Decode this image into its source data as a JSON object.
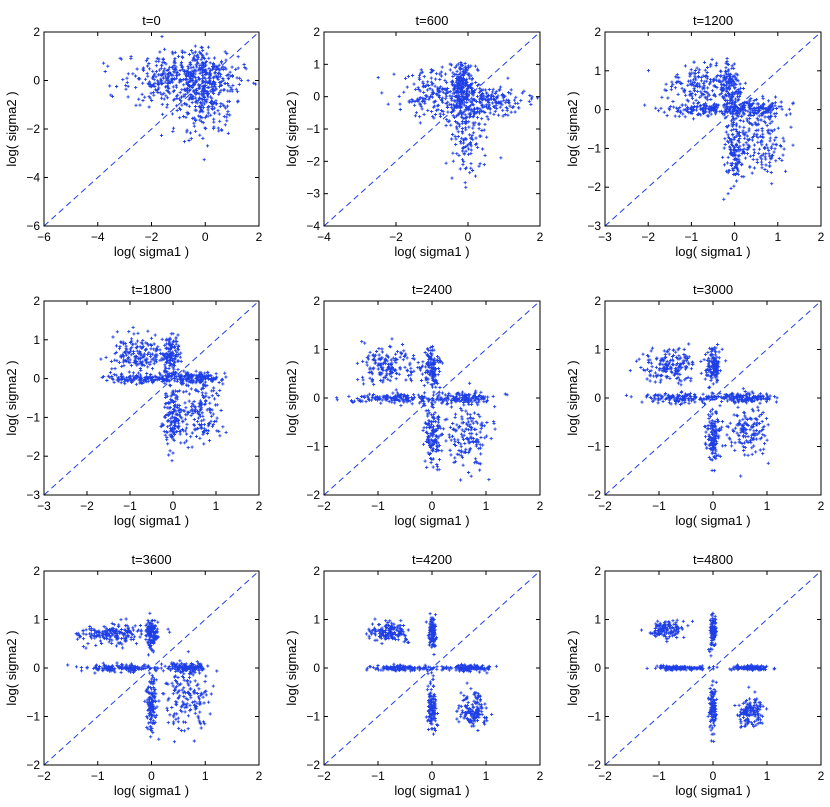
{
  "figure": {
    "marker_color": "#1f3fe6",
    "diagonal_color": "#1f3fe6",
    "marker": "plus",
    "diagonal_style": "dashed"
  },
  "chart_data": [
    {
      "type": "scatter",
      "title": "t=0",
      "xlabel": "log( sigma1 )",
      "ylabel": "log( sigma2 )",
      "xlim": [
        -6,
        2
      ],
      "ylim": [
        -6,
        2
      ],
      "xticks": [
        -6,
        -4,
        -2,
        0,
        2
      ],
      "yticks": [
        -6,
        -4,
        -2,
        0,
        2
      ],
      "xticklabels": [
        "−6",
        "−4",
        "−2",
        "0",
        "2"
      ],
      "yticklabels": [
        "−6",
        "−4",
        "−2",
        "0",
        "2"
      ],
      "clusters": [
        {
          "cx": -1.0,
          "cy": 0.0,
          "sx": 1.1,
          "sy": 0.6,
          "n": 320
        },
        {
          "cx": 0.0,
          "cy": -0.6,
          "sx": 0.5,
          "sy": 0.9,
          "n": 240
        },
        {
          "cx": -0.4,
          "cy": 0.3,
          "sx": 0.9,
          "sy": 0.4,
          "n": 140
        }
      ]
    },
    {
      "type": "scatter",
      "title": "t=600",
      "xlabel": "log( sigma1 )",
      "ylabel": "log( sigma2 )",
      "xlim": [
        -4,
        2
      ],
      "ylim": [
        -4,
        2
      ],
      "xticks": [
        -4,
        -2,
        0,
        2
      ],
      "yticks": [
        -4,
        -3,
        -2,
        -1,
        0,
        1,
        2
      ],
      "xticklabels": [
        "−4",
        "−2",
        "0",
        "2"
      ],
      "yticklabels": [
        "−4",
        "−3",
        "−2",
        "−1",
        "0",
        "1",
        "2"
      ],
      "clusters": [
        {
          "cx": -0.8,
          "cy": 0.1,
          "sx": 0.6,
          "sy": 0.35,
          "n": 200
        },
        {
          "cx": -0.15,
          "cy": 0.3,
          "sx": 0.15,
          "sy": 0.45,
          "n": 200
        },
        {
          "cx": 0.0,
          "cy": -1.0,
          "sx": 0.25,
          "sy": 0.7,
          "n": 180
        },
        {
          "cx": 0.6,
          "cy": -0.15,
          "sx": 0.45,
          "sy": 0.2,
          "n": 160
        }
      ]
    },
    {
      "type": "scatter",
      "title": "t=1200",
      "xlabel": "log( sigma1 )",
      "ylabel": "log( sigma2 )",
      "xlim": [
        -3,
        2
      ],
      "ylim": [
        -3,
        2
      ],
      "xticks": [
        -3,
        -2,
        -1,
        0,
        1,
        2
      ],
      "yticks": [
        -3,
        -2,
        -1,
        0,
        1,
        2
      ],
      "xticklabels": [
        "−3",
        "−2",
        "−1",
        "0",
        "1",
        "2"
      ],
      "yticklabels": [
        "−3",
        "−2",
        "−1",
        "0",
        "1",
        "2"
      ],
      "clusters": [
        {
          "cx": -0.8,
          "cy": 0.6,
          "sx": 0.35,
          "sy": 0.3,
          "n": 170
        },
        {
          "cx": -0.1,
          "cy": 0.6,
          "sx": 0.12,
          "sy": 0.35,
          "n": 140
        },
        {
          "cx": -0.6,
          "cy": 0.0,
          "sx": 0.55,
          "sy": 0.08,
          "n": 150
        },
        {
          "cx": 0.0,
          "cy": -1.0,
          "sx": 0.12,
          "sy": 0.5,
          "n": 150
        },
        {
          "cx": 0.6,
          "cy": -0.8,
          "sx": 0.3,
          "sy": 0.45,
          "n": 160
        },
        {
          "cx": 0.5,
          "cy": 0.0,
          "sx": 0.35,
          "sy": 0.12,
          "n": 140
        }
      ]
    },
    {
      "type": "scatter",
      "title": "t=1800",
      "xlabel": "log( sigma1 )",
      "ylabel": "log( sigma2 )",
      "xlim": [
        -3,
        2
      ],
      "ylim": [
        -3,
        2
      ],
      "xticks": [
        -3,
        -2,
        -1,
        0,
        1,
        2
      ],
      "yticks": [
        -3,
        -2,
        -1,
        0,
        1,
        2
      ],
      "xticklabels": [
        "−3",
        "−2",
        "−1",
        "0",
        "1",
        "2"
      ],
      "yticklabels": [
        "−3",
        "−2",
        "−1",
        "0",
        "1",
        "2"
      ],
      "clusters": [
        {
          "cx": -0.8,
          "cy": 0.65,
          "sx": 0.3,
          "sy": 0.25,
          "n": 170
        },
        {
          "cx": -0.05,
          "cy": 0.6,
          "sx": 0.1,
          "sy": 0.3,
          "n": 140
        },
        {
          "cx": -0.6,
          "cy": 0.0,
          "sx": 0.5,
          "sy": 0.06,
          "n": 150
        },
        {
          "cx": 0.0,
          "cy": -1.0,
          "sx": 0.1,
          "sy": 0.4,
          "n": 150
        },
        {
          "cx": 0.65,
          "cy": -0.85,
          "sx": 0.25,
          "sy": 0.4,
          "n": 160
        },
        {
          "cx": 0.55,
          "cy": 0.0,
          "sx": 0.3,
          "sy": 0.08,
          "n": 140
        }
      ]
    },
    {
      "type": "scatter",
      "title": "t=2400",
      "xlabel": "log( sigma1 )",
      "ylabel": "log( sigma2 )",
      "xlim": [
        -2,
        2
      ],
      "ylim": [
        -2,
        2
      ],
      "xticks": [
        -2,
        -1,
        0,
        1,
        2
      ],
      "yticks": [
        -2,
        -1,
        0,
        1,
        2
      ],
      "xticklabels": [
        "−2",
        "−1",
        "0",
        "1",
        "2"
      ],
      "yticklabels": [
        "−2",
        "−1",
        "0",
        "1",
        "2"
      ],
      "clusters": [
        {
          "cx": -0.8,
          "cy": 0.65,
          "sx": 0.28,
          "sy": 0.2,
          "n": 170
        },
        {
          "cx": 0.0,
          "cy": 0.65,
          "sx": 0.08,
          "sy": 0.22,
          "n": 130
        },
        {
          "cx": -0.6,
          "cy": 0.0,
          "sx": 0.45,
          "sy": 0.05,
          "n": 150
        },
        {
          "cx": 0.0,
          "cy": -0.8,
          "sx": 0.08,
          "sy": 0.35,
          "n": 140
        },
        {
          "cx": 0.65,
          "cy": -0.75,
          "sx": 0.22,
          "sy": 0.35,
          "n": 160
        },
        {
          "cx": 0.6,
          "cy": 0.0,
          "sx": 0.25,
          "sy": 0.06,
          "n": 130
        }
      ]
    },
    {
      "type": "scatter",
      "title": "t=3000",
      "xlabel": "log( sigma1 )",
      "ylabel": "log( sigma2 )",
      "xlim": [
        -2,
        2
      ],
      "ylim": [
        -2,
        2
      ],
      "xticks": [
        -2,
        -1,
        0,
        1,
        2
      ],
      "yticks": [
        -2,
        -1,
        0,
        1,
        2
      ],
      "xticklabels": [
        "−2",
        "−1",
        "0",
        "1",
        "2"
      ],
      "yticklabels": [
        "−2",
        "−1",
        "0",
        "1",
        "2"
      ],
      "clusters": [
        {
          "cx": -0.8,
          "cy": 0.65,
          "sx": 0.25,
          "sy": 0.18,
          "n": 170
        },
        {
          "cx": 0.0,
          "cy": 0.65,
          "sx": 0.07,
          "sy": 0.2,
          "n": 130
        },
        {
          "cx": -0.55,
          "cy": 0.0,
          "sx": 0.4,
          "sy": 0.05,
          "n": 150
        },
        {
          "cx": 0.0,
          "cy": -0.75,
          "sx": 0.07,
          "sy": 0.3,
          "n": 130
        },
        {
          "cx": 0.65,
          "cy": -0.7,
          "sx": 0.2,
          "sy": 0.3,
          "n": 150
        },
        {
          "cx": 0.65,
          "cy": 0.0,
          "sx": 0.22,
          "sy": 0.05,
          "n": 130
        }
      ]
    },
    {
      "type": "scatter",
      "title": "t=3600",
      "xlabel": "log( sigma1 )",
      "ylabel": "log( sigma2 )",
      "xlim": [
        -2,
        2
      ],
      "ylim": [
        -2,
        2
      ],
      "xticks": [
        -2,
        -1,
        0,
        1,
        2
      ],
      "yticks": [
        -2,
        -1,
        0,
        1,
        2
      ],
      "xticklabels": [
        "−2",
        "−1",
        "0",
        "1",
        "2"
      ],
      "yticklabels": [
        "−2",
        "−1",
        "0",
        "1",
        "2"
      ],
      "clusters": [
        {
          "cx": -0.75,
          "cy": 0.7,
          "sx": 0.3,
          "sy": 0.1,
          "n": 180
        },
        {
          "cx": 0.0,
          "cy": 0.7,
          "sx": 0.05,
          "sy": 0.15,
          "n": 120
        },
        {
          "cx": -0.55,
          "cy": 0.0,
          "sx": 0.35,
          "sy": 0.04,
          "n": 140
        },
        {
          "cx": 0.0,
          "cy": -0.75,
          "sx": 0.05,
          "sy": 0.3,
          "n": 130
        },
        {
          "cx": 0.65,
          "cy": -0.6,
          "sx": 0.2,
          "sy": 0.35,
          "n": 160
        },
        {
          "cx": 0.65,
          "cy": 0.0,
          "sx": 0.22,
          "sy": 0.04,
          "n": 130
        }
      ]
    },
    {
      "type": "scatter",
      "title": "t=4200",
      "xlabel": "log( sigma1 )",
      "ylabel": "log( sigma2 )",
      "xlim": [
        -2,
        2
      ],
      "ylim": [
        -2,
        2
      ],
      "xticks": [
        -2,
        -1,
        0,
        1,
        2
      ],
      "yticks": [
        -2,
        -1,
        0,
        1,
        2
      ],
      "xticklabels": [
        "−2",
        "−1",
        "0",
        "1",
        "2"
      ],
      "yticklabels": [
        "−2",
        "−1",
        "0",
        "1",
        "2"
      ],
      "clusters": [
        {
          "cx": -0.8,
          "cy": 0.75,
          "sx": 0.18,
          "sy": 0.1,
          "n": 150
        },
        {
          "cx": 0.0,
          "cy": 0.75,
          "sx": 0.04,
          "sy": 0.18,
          "n": 110
        },
        {
          "cx": -0.55,
          "cy": 0.0,
          "sx": 0.3,
          "sy": 0.03,
          "n": 130
        },
        {
          "cx": 0.0,
          "cy": -0.85,
          "sx": 0.04,
          "sy": 0.25,
          "n": 120
        },
        {
          "cx": 0.75,
          "cy": -0.85,
          "sx": 0.14,
          "sy": 0.18,
          "n": 140
        },
        {
          "cx": 0.7,
          "cy": 0.0,
          "sx": 0.18,
          "sy": 0.03,
          "n": 120
        }
      ]
    },
    {
      "type": "scatter",
      "title": "t=4800",
      "xlabel": "log( sigma1 )",
      "ylabel": "log( sigma2 )",
      "xlim": [
        -2,
        2
      ],
      "ylim": [
        -2,
        2
      ],
      "xticks": [
        -2,
        -1,
        0,
        1,
        2
      ],
      "yticks": [
        -2,
        -1,
        0,
        1,
        2
      ],
      "xticklabels": [
        "−2",
        "−1",
        "0",
        "1",
        "2"
      ],
      "yticklabels": [
        "−2",
        "−1",
        "0",
        "1",
        "2"
      ],
      "clusters": [
        {
          "cx": -0.85,
          "cy": 0.8,
          "sx": 0.15,
          "sy": 0.1,
          "n": 130
        },
        {
          "cx": 0.0,
          "cy": 0.75,
          "sx": 0.03,
          "sy": 0.18,
          "n": 100
        },
        {
          "cx": -0.6,
          "cy": 0.0,
          "sx": 0.28,
          "sy": 0.025,
          "n": 120
        },
        {
          "cx": 0.0,
          "cy": -0.85,
          "sx": 0.03,
          "sy": 0.25,
          "n": 110
        },
        {
          "cx": 0.7,
          "cy": -0.9,
          "sx": 0.14,
          "sy": 0.15,
          "n": 130
        },
        {
          "cx": 0.7,
          "cy": 0.0,
          "sx": 0.16,
          "sy": 0.025,
          "n": 110
        }
      ]
    }
  ]
}
